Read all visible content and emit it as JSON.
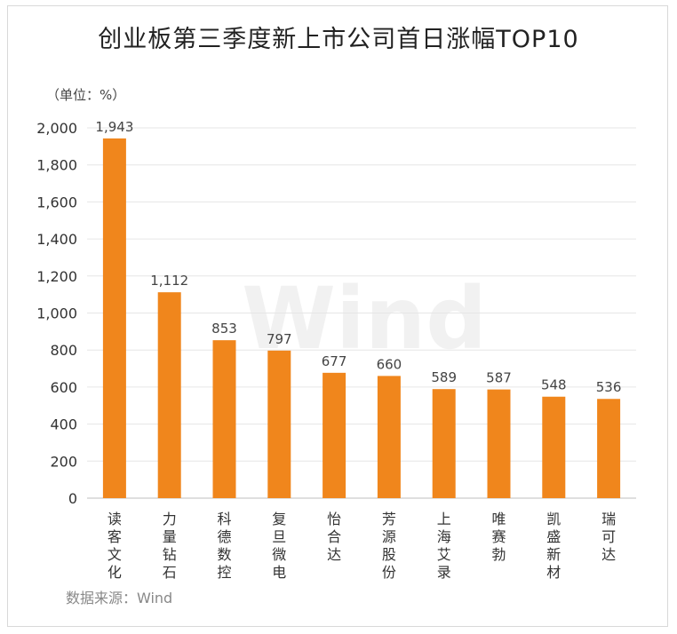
{
  "chart_data": {
    "type": "bar",
    "title": "创业板第三季度新上市公司首日涨幅TOP10",
    "unit_label": "（单位：%）",
    "source": "数据来源：Wind",
    "watermark": "Wind",
    "categories": [
      "读客文化",
      "力量钻石",
      "科德数控",
      "复旦微电",
      "怡合达",
      "芳源股份",
      "上海艾录",
      "唯赛勃",
      "凯盛新材",
      "瑞可达"
    ],
    "values": [
      1943,
      1112,
      853,
      797,
      677,
      660,
      589,
      587,
      548,
      536
    ],
    "value_labels": [
      "1,943",
      "1,112",
      "853",
      "797",
      "677",
      "660",
      "589",
      "587",
      "548",
      "536"
    ],
    "yticks": [
      "0",
      "200",
      "400",
      "600",
      "800",
      "1,000",
      "1,200",
      "1,400",
      "1,600",
      "1,800",
      "2,000"
    ],
    "ylim": [
      0,
      2000
    ],
    "grid": true,
    "bar_color": "#f0861c",
    "grid_color": "#e6e6e6"
  }
}
